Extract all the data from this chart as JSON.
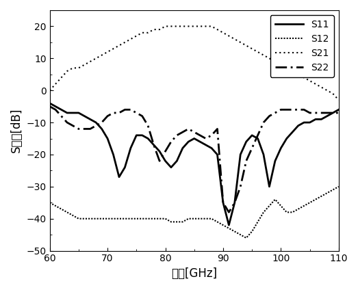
{
  "freq_range": [
    60,
    110
  ],
  "ylim": [
    -50,
    25
  ],
  "yticks": [
    -50,
    -40,
    -30,
    -20,
    -10,
    0,
    10,
    20
  ],
  "xticks": [
    60,
    70,
    80,
    90,
    100,
    110
  ],
  "xlabel": "频率[GHz]",
  "ylabel": "S参数[dB]",
  "background_color": "#ffffff",
  "S11": {
    "label": "S11",
    "color": "#000000",
    "linestyle": "solid",
    "linewidth": 2.0,
    "x": [
      60,
      61,
      62,
      63,
      64,
      65,
      66,
      67,
      68,
      69,
      70,
      71,
      72,
      73,
      74,
      75,
      76,
      77,
      78,
      79,
      80,
      81,
      82,
      83,
      84,
      85,
      86,
      87,
      88,
      89,
      90,
      91,
      92,
      93,
      94,
      95,
      96,
      97,
      98,
      99,
      100,
      101,
      102,
      103,
      104,
      105,
      106,
      107,
      108,
      109,
      110
    ],
    "y": [
      -4,
      -5,
      -6,
      -7,
      -7,
      -7,
      -8,
      -9,
      -10,
      -12,
      -15,
      -20,
      -27,
      -24,
      -18,
      -14,
      -14,
      -15,
      -17,
      -19,
      -22,
      -24,
      -22,
      -18,
      -16,
      -15,
      -16,
      -17,
      -18,
      -20,
      -35,
      -42,
      -35,
      -20,
      -16,
      -14,
      -15,
      -20,
      -30,
      -22,
      -18,
      -15,
      -13,
      -11,
      -10,
      -10,
      -9,
      -9,
      -8,
      -7,
      -6
    ]
  },
  "S12": {
    "label": "S12",
    "color": "#000000",
    "linestyle": "densely dotted",
    "linewidth": 1.5,
    "x": [
      60,
      61,
      62,
      63,
      64,
      65,
      66,
      67,
      68,
      69,
      70,
      71,
      72,
      73,
      74,
      75,
      76,
      77,
      78,
      79,
      80,
      81,
      82,
      83,
      84,
      85,
      86,
      87,
      88,
      89,
      90,
      91,
      92,
      93,
      94,
      95,
      96,
      97,
      98,
      99,
      100,
      101,
      102,
      103,
      104,
      105,
      106,
      107,
      108,
      109,
      110
    ],
    "y": [
      -35,
      -36,
      -37,
      -38,
      -39,
      -40,
      -40,
      -40,
      -40,
      -40,
      -40,
      -40,
      -40,
      -40,
      -40,
      -40,
      -40,
      -40,
      -40,
      -40,
      -40,
      -41,
      -41,
      -41,
      -40,
      -40,
      -40,
      -40,
      -40,
      -41,
      -42,
      -43,
      -44,
      -45,
      -46,
      -44,
      -41,
      -38,
      -36,
      -34,
      -36,
      -38,
      -38,
      -37,
      -36,
      -35,
      -34,
      -33,
      -32,
      -31,
      -30
    ]
  },
  "S21": {
    "label": "S21",
    "color": "#000000",
    "linestyle": "dotted",
    "linewidth": 1.5,
    "x": [
      60,
      61,
      62,
      63,
      64,
      65,
      66,
      67,
      68,
      69,
      70,
      71,
      72,
      73,
      74,
      75,
      76,
      77,
      78,
      79,
      80,
      81,
      82,
      83,
      84,
      85,
      86,
      87,
      88,
      89,
      90,
      91,
      92,
      93,
      94,
      95,
      96,
      97,
      98,
      99,
      100,
      101,
      102,
      103,
      104,
      105,
      106,
      107,
      108,
      109,
      110
    ],
    "y": [
      0,
      2,
      4,
      6,
      7,
      7,
      8,
      9,
      10,
      11,
      12,
      13,
      14,
      15,
      16,
      17,
      18,
      18,
      19,
      19,
      20,
      20,
      20,
      20,
      20,
      20,
      20,
      20,
      20,
      19,
      18,
      17,
      16,
      15,
      14,
      13,
      12,
      11,
      10,
      9,
      8,
      7,
      6,
      5,
      4,
      3,
      2,
      1,
      0,
      -1,
      -3
    ]
  },
  "S22": {
    "label": "S22",
    "color": "#000000",
    "linestyle": "dashdot",
    "linewidth": 2.0,
    "x": [
      60,
      61,
      62,
      63,
      64,
      65,
      66,
      67,
      68,
      69,
      70,
      71,
      72,
      73,
      74,
      75,
      76,
      77,
      78,
      79,
      80,
      81,
      82,
      83,
      84,
      85,
      86,
      87,
      88,
      89,
      90,
      91,
      92,
      93,
      94,
      95,
      96,
      97,
      98,
      99,
      100,
      101,
      102,
      103,
      104,
      105,
      106,
      107,
      108,
      109,
      110
    ],
    "y": [
      -5,
      -6,
      -8,
      -10,
      -11,
      -12,
      -12,
      -12,
      -11,
      -10,
      -8,
      -7,
      -7,
      -6,
      -6,
      -7,
      -8,
      -11,
      -17,
      -22,
      -19,
      -16,
      -14,
      -13,
      -12,
      -13,
      -14,
      -15,
      -14,
      -12,
      -35,
      -38,
      -35,
      -30,
      -22,
      -18,
      -14,
      -10,
      -8,
      -7,
      -6,
      -6,
      -6,
      -6,
      -6,
      -7,
      -7,
      -7,
      -7,
      -7,
      -7
    ]
  }
}
